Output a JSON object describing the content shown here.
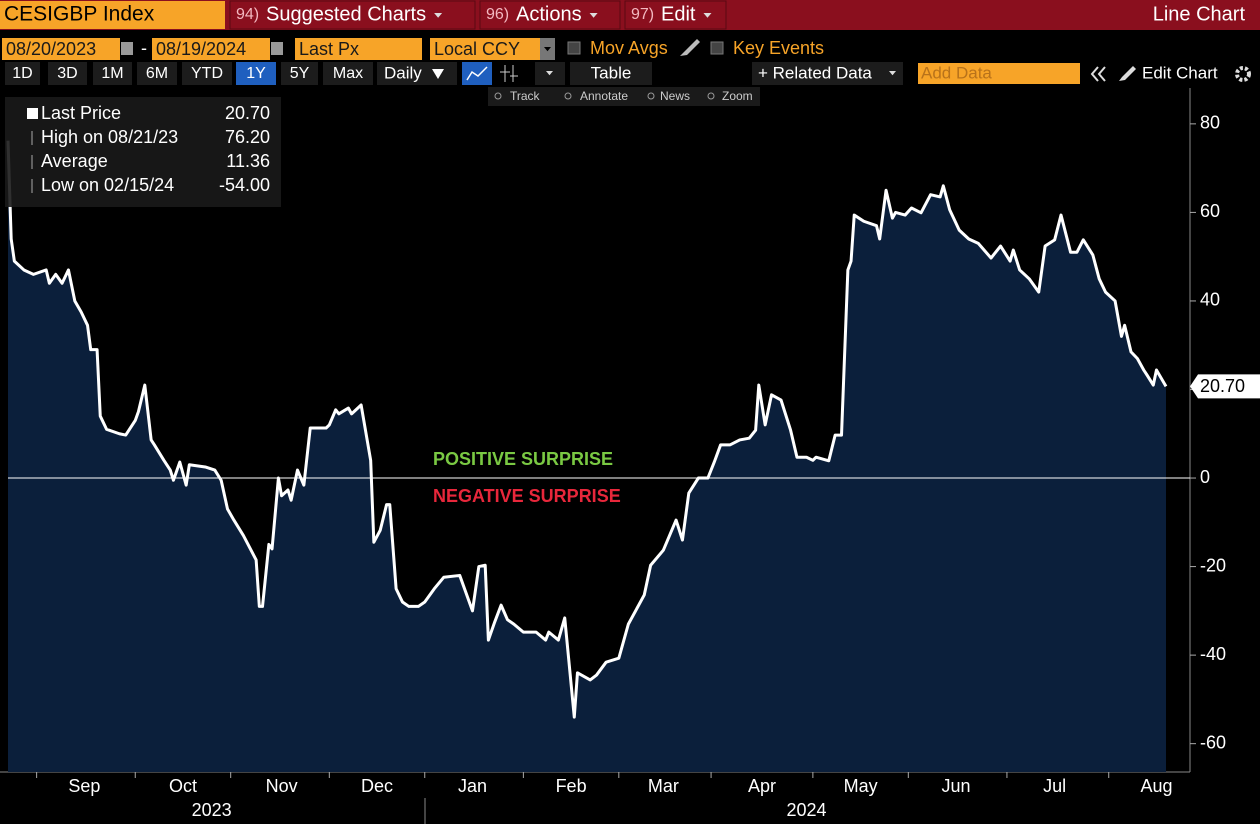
{
  "toolbar": {
    "security": "CESIGBP Index",
    "menus": [
      {
        "num": "94)",
        "label": "Suggested Charts"
      },
      {
        "num": "96)",
        "label": "Actions"
      },
      {
        "num": "97)",
        "label": "Edit"
      }
    ],
    "chart_type": "Line Chart"
  },
  "controls": {
    "start_date": "08/20/2023",
    "date_separator": "-",
    "end_date": "08/19/2024",
    "field": "Last Px",
    "currency": "Local CCY",
    "options": [
      "Mov Avgs",
      "Key Events"
    ]
  },
  "periods": [
    "1D",
    "3D",
    "1M",
    "6M",
    "YTD",
    "1Y",
    "5Y",
    "Max"
  ],
  "active_period": 5,
  "frequency": "Daily",
  "table": "Table",
  "related": "+ Related Data",
  "add_data": "Add Data",
  "edit_chart": "Edit Chart",
  "tools": [
    "Track",
    "Annotate",
    "News",
    "Zoom"
  ],
  "legend": [
    {
      "label": "Last Price",
      "value": "20.70"
    },
    {
      "label": "High on 08/21/23",
      "value": "76.20"
    },
    {
      "label": "Average",
      "value": "11.36"
    },
    {
      "label": "Low on 02/15/24",
      "value": "-54.00"
    }
  ],
  "chart_data": {
    "type": "line",
    "x": [
      0,
      1,
      2,
      5,
      8,
      12,
      13,
      15,
      17,
      19,
      21,
      23,
      25,
      26,
      28,
      29,
      31,
      35,
      37,
      40,
      41,
      43,
      45,
      46,
      49,
      51,
      52,
      54,
      56,
      57,
      62,
      65,
      67,
      69,
      71,
      74,
      78,
      79,
      80,
      82,
      83,
      85,
      86,
      88,
      89,
      91,
      93,
      95,
      100,
      101,
      103,
      104,
      107,
      108,
      111,
      114,
      115,
      117,
      119,
      120,
      122,
      124,
      126,
      129,
      131,
      134,
      137,
      142,
      146,
      148,
      150,
      151,
      153,
      155,
      157,
      159,
      162,
      166,
      169,
      170,
      173,
      175,
      178,
      179,
      183,
      185,
      188,
      192,
      195,
      200,
      202,
      206,
      210,
      212,
      214,
      217,
      220,
      222,
      224,
      227,
      230,
      233,
      235,
      236,
      238,
      240,
      243,
      246,
      248,
      251,
      253,
      254,
      258,
      260,
      262,
      264,
      265,
      266,
      269,
      273,
      274,
      276,
      278,
      279,
      282,
      284,
      287,
      290,
      293,
      294,
      296,
      299,
      302,
      305,
      309,
      312,
      315,
      316,
      318,
      321,
      324,
      326,
      329,
      331,
      334,
      336,
      338,
      341,
      343,
      345,
      348,
      350,
      351,
      353,
      355,
      357,
      358,
      360,
      361,
      364
    ],
    "series": [
      {
        "color": "#ffffff",
        "fill": "#0b1f3b",
        "end_label": "20.70",
        "values": [
          76.2,
          54,
          49,
          47,
          46,
          47,
          44,
          46,
          44,
          47,
          40,
          37.5,
          34.5,
          29,
          29,
          14,
          11,
          10,
          9.7,
          13,
          15,
          21,
          8.6,
          7.5,
          4,
          1.8,
          -0.5,
          3.6,
          -1.6,
          3,
          2.5,
          1.8,
          -0.5,
          -7,
          -9.5,
          -13,
          -18.5,
          -29,
          -29,
          -15,
          -16,
          0,
          -4,
          -2.7,
          -5,
          1.8,
          -1.6,
          11.3,
          11.3,
          12,
          15.4,
          14.5,
          15.8,
          14.5,
          16.5,
          4,
          -14.5,
          -11.8,
          -6,
          -6,
          -25,
          -28,
          -29,
          -29,
          -28,
          -25,
          -22.4,
          -22,
          -30,
          -20,
          -19.7,
          -36.6,
          -32.5,
          -28.7,
          -32,
          -33,
          -34.8,
          -34.8,
          -36.6,
          -34.8,
          -36.6,
          -31.6,
          -54,
          -44,
          -45.6,
          -44.5,
          -41.6,
          -40.7,
          -33,
          -26.4,
          -19.7,
          -16.3,
          -9.5,
          -14,
          -3.4,
          0,
          0,
          3.6,
          7.5,
          7.5,
          8.6,
          9,
          10.8,
          21,
          12,
          18.8,
          17.6,
          10.8,
          4.7,
          4.7,
          4,
          4.7,
          3.9,
          9.7,
          9.7,
          47,
          49,
          59.4,
          58,
          57,
          54,
          65,
          58.7,
          60,
          59.4,
          61,
          59.9,
          64,
          63.5,
          66,
          60.6,
          56,
          54,
          53,
          49.7,
          52.4,
          49,
          51.5,
          47,
          45,
          42,
          52.4,
          53.8,
          59.4,
          51,
          51,
          53.8,
          50.4,
          45,
          42,
          40,
          32,
          34.5,
          28.5,
          27,
          24.4,
          23.3,
          21,
          24.4,
          20.7
        ]
      }
    ],
    "xlim": [
      0,
      364
    ],
    "ylim": [
      -66.4,
      88.1
    ],
    "yticks": [
      80,
      60,
      40,
      20,
      0,
      -20,
      -40,
      -60
    ],
    "xticks": [
      {
        "value": 24,
        "label": "Sep"
      },
      {
        "value": 55,
        "label": "Oct"
      },
      {
        "value": 86,
        "label": "Nov"
      },
      {
        "value": 116,
        "label": "Dec"
      },
      {
        "value": 146,
        "label": "Jan"
      },
      {
        "value": 177,
        "label": "Feb"
      },
      {
        "value": 206,
        "label": "Mar"
      },
      {
        "value": 237,
        "label": "Apr"
      },
      {
        "value": 268,
        "label": "May"
      },
      {
        "value": 298,
        "label": "Jun"
      },
      {
        "value": 329,
        "label": "Jul"
      },
      {
        "value": 361,
        "label": "Aug"
      }
    ],
    "xminor_ticks": [
      9,
      40,
      70,
      101,
      131,
      162,
      192,
      221,
      253,
      283,
      314,
      346
    ],
    "year_ticks": [
      {
        "value": 64,
        "label": "2023"
      },
      {
        "value": 251,
        "label": "2024"
      }
    ],
    "reference_line": {
      "value": 0,
      "color": "#ffffff"
    },
    "annotations": [
      {
        "text": "POSITIVE SURPRISE",
        "color": "#7ac943"
      },
      {
        "text": "NEGATIVE SURPRISE",
        "color": "#e8273b"
      }
    ]
  }
}
